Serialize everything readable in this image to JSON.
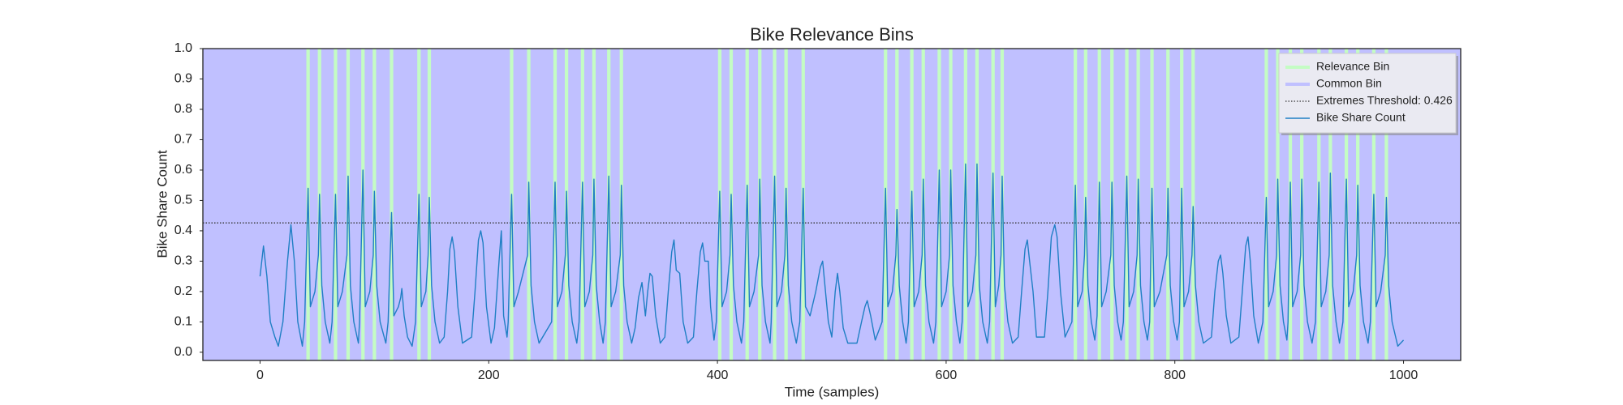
{
  "chart_data": {
    "type": "line",
    "title": "Bike Relevance Bins",
    "xlabel": "Time (samples)",
    "ylabel": "Bike Share Count",
    "xlim": [
      -50,
      1050
    ],
    "ylim": [
      -0.027,
      1.0
    ],
    "xticks": [
      0,
      200,
      400,
      600,
      800,
      1000
    ],
    "yticks": [
      {
        "value": 0,
        "label": "0.0"
      },
      0.1,
      0.2,
      0.3,
      0.4,
      0.5,
      0.6,
      0.7,
      0.8,
      0.9,
      {
        "value": 1,
        "label": "1.0"
      }
    ],
    "legend": "upper right",
    "common_bin": {
      "name": "Common Bin",
      "color": "#c0c0ff"
    },
    "relevance_bins": {
      "name": "Relevance Bin",
      "color": "#c4fcc4",
      "ranges": [
        [
          40.5,
          43.5
        ],
        [
          50.5,
          53.5
        ],
        [
          64.5,
          67.5
        ],
        [
          75.5,
          78.5
        ],
        [
          88.5,
          91.5
        ],
        [
          98.5,
          101.5
        ],
        [
          113.5,
          116.5
        ],
        [
          137.5,
          140.5
        ],
        [
          146.5,
          149.5
        ],
        [
          218.5,
          221.5
        ],
        [
          233.5,
          236.5
        ],
        [
          256.5,
          259.5
        ],
        [
          266.5,
          269.5
        ],
        [
          280.5,
          283.5
        ],
        [
          290.5,
          293.5
        ],
        [
          303.5,
          306.5
        ],
        [
          314.5,
          317.5
        ],
        [
          400.5,
          403.5
        ],
        [
          410.5,
          413.5
        ],
        [
          424.5,
          427.5
        ],
        [
          435.5,
          438.5
        ],
        [
          448.5,
          451.5
        ],
        [
          458.5,
          461.5
        ],
        [
          473.5,
          476.5
        ],
        [
          545.5,
          548.5
        ],
        [
          555.5,
          558.5
        ],
        [
          568.5,
          571.5
        ],
        [
          578.5,
          581.5
        ],
        [
          592.5,
          595.5
        ],
        [
          602.5,
          605.5
        ],
        [
          615.5,
          618.5
        ],
        [
          625.5,
          628.5
        ],
        [
          639.5,
          642.5
        ],
        [
          647.5,
          650.5
        ],
        [
          711.5,
          714.5
        ],
        [
          720.5,
          723.5
        ],
        [
          732.5,
          735.5
        ],
        [
          743.5,
          746.5
        ],
        [
          756.5,
          759.5
        ],
        [
          766.5,
          769.5
        ],
        [
          778.5,
          781.5
        ],
        [
          792.5,
          795.5
        ],
        [
          804.5,
          807.5
        ],
        [
          814.5,
          817.5
        ],
        [
          878.5,
          881.5
        ],
        [
          888.5,
          891.5
        ],
        [
          899.5,
          902.5
        ],
        [
          909.5,
          912.5
        ],
        [
          924.5,
          927.5
        ],
        [
          934.5,
          937.5
        ],
        [
          948.5,
          951.5
        ],
        [
          958.5,
          961.5
        ],
        [
          972.5,
          975.5
        ],
        [
          983.5,
          986.5
        ]
      ]
    },
    "threshold": {
      "name": "Extremes Threshold: 0.426",
      "value": 0.426,
      "color": "#333333"
    },
    "series": [
      {
        "name": "Bike Share Count",
        "color": "#1f7fc4",
        "x": [
          0,
          3,
          6,
          9,
          13,
          16,
          20,
          24,
          27,
          30,
          33,
          37,
          39,
          42,
          44,
          48,
          51,
          52,
          54,
          57,
          61,
          63,
          66,
          68,
          72,
          76,
          77,
          79,
          82,
          86,
          87,
          90,
          92,
          96,
          99,
          100,
          102,
          105,
          110,
          112,
          115,
          117,
          121,
          123,
          124,
          126,
          129,
          133,
          136,
          139,
          141,
          145,
          147,
          148,
          150,
          153,
          157,
          161,
          164,
          166,
          168,
          170,
          173,
          177,
          185,
          188,
          191,
          193,
          195,
          198,
          202,
          205,
          209,
          211,
          213,
          216,
          217,
          220,
          222,
          226,
          234,
          235,
          237,
          240,
          244,
          255,
          258,
          260,
          264,
          267,
          268,
          270,
          273,
          277,
          279,
          282,
          284,
          288,
          291,
          292,
          294,
          297,
          300,
          302,
          305,
          307,
          311,
          315,
          316,
          318,
          321,
          325,
          328,
          331,
          334,
          337,
          339,
          341,
          343,
          346,
          350,
          354,
          357,
          360,
          362,
          364,
          367,
          370,
          374,
          379,
          382,
          385,
          387,
          389,
          392,
          394,
          397,
          399,
          402,
          404,
          408,
          411,
          412,
          414,
          417,
          421,
          423,
          426,
          428,
          432,
          436,
          437,
          439,
          442,
          446,
          447,
          450,
          452,
          456,
          459,
          460,
          462,
          465,
          469,
          472,
          475,
          477,
          481,
          486,
          490,
          492,
          494,
          497,
          500,
          503,
          505,
          507,
          510,
          514,
          522,
          526,
          529,
          531,
          534,
          538,
          544,
          547,
          549,
          553,
          556,
          557,
          559,
          562,
          565,
          567,
          570,
          572,
          576,
          579,
          580,
          582,
          585,
          589,
          591,
          594,
          596,
          600,
          603,
          604,
          606,
          609,
          612,
          614,
          617,
          619,
          623,
          626,
          627,
          629,
          632,
          636,
          638,
          641,
          643,
          646,
          648,
          649,
          651,
          654,
          658,
          663,
          666,
          669,
          671,
          673,
          676,
          679,
          686,
          689,
          692,
          695,
          697,
          700,
          704,
          710,
          713,
          715,
          719,
          721,
          722,
          724,
          727,
          730,
          732,
          734,
          736,
          740,
          744,
          745,
          747,
          750,
          753,
          755,
          758,
          760,
          764,
          767,
          768,
          770,
          773,
          776,
          778,
          780,
          782,
          787,
          793,
          794,
          796,
          799,
          802,
          804,
          806,
          808,
          812,
          815,
          816,
          818,
          821,
          825,
          832,
          835,
          838,
          840,
          842,
          845,
          849,
          856,
          859,
          862,
          864,
          866,
          869,
          873,
          877,
          880,
          882,
          886,
          889,
          890,
          892,
          895,
          898,
          899,
          901,
          903,
          907,
          910,
          911,
          913,
          916,
          920,
          923,
          926,
          928,
          932,
          935,
          936,
          938,
          941,
          944,
          947,
          950,
          952,
          956,
          959,
          960,
          962,
          965,
          969,
          971,
          974,
          976,
          980,
          984,
          985,
          987,
          990,
          995,
          1000
        ],
        "values": [
          0.25,
          0.35,
          0.25,
          0.1,
          0.05,
          0.02,
          0.1,
          0.3,
          0.42,
          0.3,
          0.1,
          0.02,
          0.1,
          0.54,
          0.15,
          0.2,
          0.32,
          0.52,
          0.22,
          0.1,
          0.03,
          0.1,
          0.52,
          0.15,
          0.2,
          0.32,
          0.58,
          0.22,
          0.1,
          0.03,
          0.1,
          0.6,
          0.15,
          0.2,
          0.32,
          0.53,
          0.22,
          0.1,
          0.03,
          0.1,
          0.46,
          0.12,
          0.15,
          0.18,
          0.21,
          0.12,
          0.05,
          0.02,
          0.1,
          0.52,
          0.15,
          0.2,
          0.32,
          0.51,
          0.22,
          0.1,
          0.03,
          0.05,
          0.2,
          0.34,
          0.38,
          0.33,
          0.15,
          0.03,
          0.05,
          0.2,
          0.37,
          0.4,
          0.36,
          0.15,
          0.03,
          0.08,
          0.3,
          0.4,
          0.12,
          0.05,
          0.1,
          0.52,
          0.15,
          0.2,
          0.32,
          0.56,
          0.22,
          0.1,
          0.03,
          0.1,
          0.56,
          0.15,
          0.2,
          0.32,
          0.53,
          0.22,
          0.1,
          0.03,
          0.1,
          0.56,
          0.15,
          0.2,
          0.32,
          0.57,
          0.22,
          0.1,
          0.03,
          0.1,
          0.58,
          0.15,
          0.2,
          0.32,
          0.55,
          0.22,
          0.1,
          0.03,
          0.08,
          0.18,
          0.23,
          0.12,
          0.2,
          0.26,
          0.25,
          0.12,
          0.03,
          0.05,
          0.2,
          0.33,
          0.37,
          0.27,
          0.26,
          0.1,
          0.03,
          0.05,
          0.2,
          0.33,
          0.36,
          0.3,
          0.3,
          0.15,
          0.04,
          0.1,
          0.53,
          0.15,
          0.2,
          0.32,
          0.52,
          0.22,
          0.1,
          0.03,
          0.1,
          0.55,
          0.15,
          0.2,
          0.32,
          0.57,
          0.22,
          0.1,
          0.03,
          0.1,
          0.58,
          0.15,
          0.2,
          0.32,
          0.54,
          0.22,
          0.1,
          0.03,
          0.1,
          0.54,
          0.15,
          0.12,
          0.2,
          0.28,
          0.3,
          0.22,
          0.1,
          0.05,
          0.2,
          0.26,
          0.2,
          0.08,
          0.03,
          0.03,
          0.1,
          0.15,
          0.17,
          0.12,
          0.04,
          0.1,
          0.54,
          0.15,
          0.2,
          0.32,
          0.47,
          0.22,
          0.1,
          0.03,
          0.1,
          0.53,
          0.15,
          0.2,
          0.32,
          0.57,
          0.22,
          0.1,
          0.03,
          0.1,
          0.6,
          0.15,
          0.2,
          0.32,
          0.6,
          0.22,
          0.1,
          0.03,
          0.1,
          0.62,
          0.15,
          0.2,
          0.32,
          0.62,
          0.22,
          0.1,
          0.03,
          0.1,
          0.59,
          0.15,
          0.22,
          0.32,
          0.58,
          0.22,
          0.1,
          0.03,
          0.05,
          0.2,
          0.34,
          0.37,
          0.3,
          0.2,
          0.05,
          0.05,
          0.2,
          0.38,
          0.42,
          0.38,
          0.2,
          0.05,
          0.1,
          0.55,
          0.15,
          0.2,
          0.32,
          0.51,
          0.22,
          0.1,
          0.04,
          0.12,
          0.56,
          0.15,
          0.2,
          0.32,
          0.56,
          0.22,
          0.1,
          0.04,
          0.1,
          0.58,
          0.15,
          0.2,
          0.32,
          0.57,
          0.22,
          0.1,
          0.04,
          0.1,
          0.54,
          0.15,
          0.2,
          0.32,
          0.54,
          0.22,
          0.1,
          0.04,
          0.1,
          0.54,
          0.15,
          0.2,
          0.32,
          0.48,
          0.22,
          0.1,
          0.03,
          0.05,
          0.2,
          0.3,
          0.32,
          0.26,
          0.12,
          0.03,
          0.05,
          0.2,
          0.35,
          0.38,
          0.3,
          0.12,
          0.03,
          0.1,
          0.51,
          0.15,
          0.2,
          0.32,
          0.57,
          0.22,
          0.1,
          0.04,
          0.1,
          0.56,
          0.15,
          0.2,
          0.32,
          0.57,
          0.22,
          0.1,
          0.03,
          0.1,
          0.56,
          0.15,
          0.2,
          0.32,
          0.59,
          0.22,
          0.1,
          0.03,
          0.1,
          0.57,
          0.15,
          0.2,
          0.32,
          0.55,
          0.22,
          0.1,
          0.03,
          0.1,
          0.52,
          0.15,
          0.2,
          0.32,
          0.51,
          0.22,
          0.1,
          0.02,
          0.04
        ]
      }
    ]
  }
}
